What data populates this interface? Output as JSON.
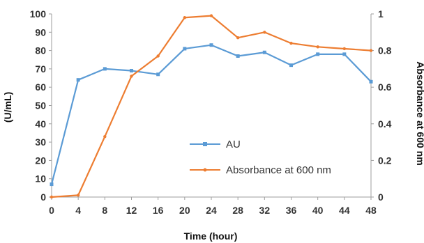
{
  "chart_data": {
    "type": "line",
    "xlabel": "Time (hour)",
    "ylabel": "(U/mL)",
    "y2label": "Absorbance at 600 nm",
    "x": [
      0,
      4,
      8,
      12,
      16,
      20,
      24,
      28,
      32,
      36,
      40,
      44,
      48
    ],
    "ylim": [
      0,
      100
    ],
    "y2lim": [
      0,
      1
    ],
    "xticks": [
      "0",
      "4",
      "8",
      "12",
      "16",
      "20",
      "24",
      "28",
      "32",
      "36",
      "40",
      "44",
      "48"
    ],
    "yticks": [
      "0",
      "10",
      "20",
      "30",
      "40",
      "50",
      "60",
      "70",
      "80",
      "90",
      "100"
    ],
    "y2ticks": [
      "0",
      "0.2",
      "0.4",
      "0.6",
      "0.8",
      "1"
    ],
    "grid": false,
    "legend_position": "center-right",
    "series": [
      {
        "name": "AU",
        "axis": "left",
        "color": "#5b9bd5",
        "marker": "square",
        "values": [
          7,
          64,
          70,
          69,
          67,
          81,
          83,
          77,
          79,
          72,
          78,
          78,
          63
        ]
      },
      {
        "name": "Absorbance at 600 nm",
        "axis": "right",
        "color": "#ed7d31",
        "marker": "dot",
        "values": [
          0.0,
          0.01,
          0.33,
          0.66,
          0.77,
          0.98,
          0.99,
          0.87,
          0.9,
          0.84,
          0.82,
          0.81,
          0.8
        ]
      }
    ]
  }
}
